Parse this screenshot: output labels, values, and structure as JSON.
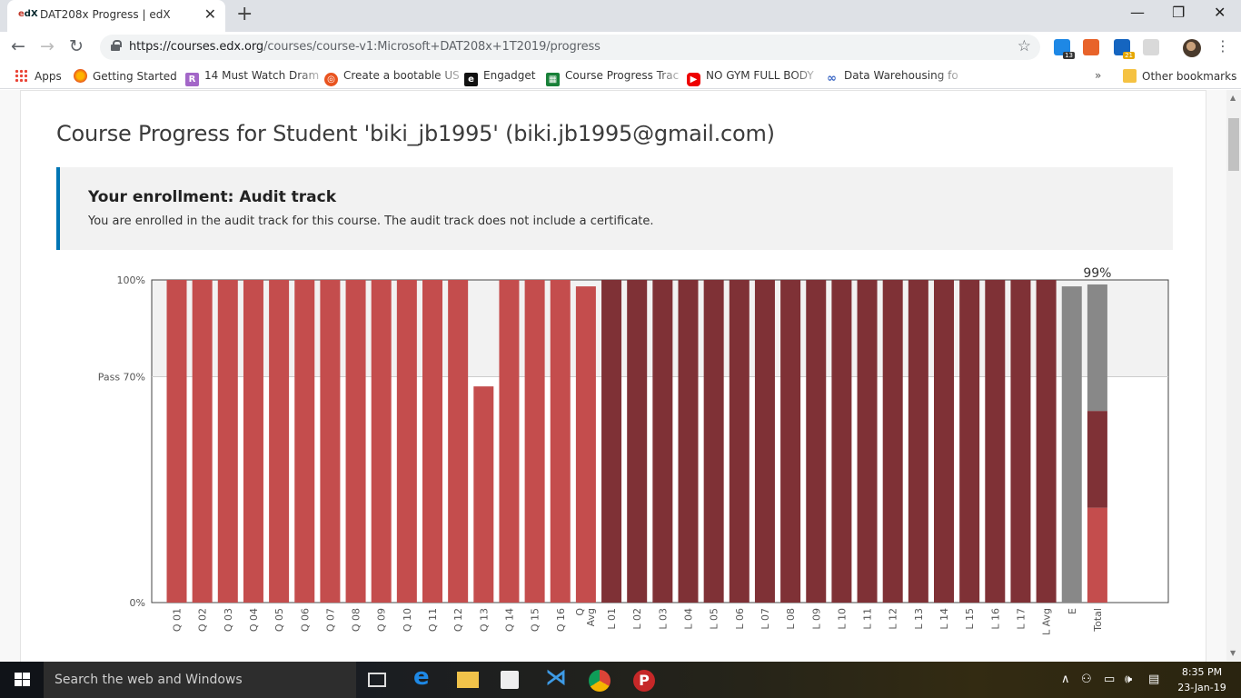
{
  "browser": {
    "tab_title": "DAT208x Progress | edX",
    "favicon_text": "edX",
    "url_host": "https://courses.edx.org",
    "url_path": "/courses/course-v1:Microsoft+DAT208x+1T2019/progress",
    "extension_badges": [
      "13",
      "21"
    ],
    "bookmarks": [
      {
        "label": "Apps",
        "icon": "apps-grid-icon"
      },
      {
        "label": "Getting Started",
        "icon": "firefox-icon"
      },
      {
        "label": "14 Must Watch Dram",
        "icon": "r-icon"
      },
      {
        "label": "Create a bootable US",
        "icon": "ubuntu-icon"
      },
      {
        "label": "Engadget",
        "icon": "engadget-icon"
      },
      {
        "label": "Course Progress Trac",
        "icon": "sheets-icon"
      },
      {
        "label": "NO GYM FULL BODY",
        "icon": "youtube-icon"
      },
      {
        "label": "Data Warehousing fo",
        "icon": "infinity-icon"
      }
    ],
    "overflow": "»",
    "other_bookmarks": "Other bookmarks"
  },
  "page": {
    "heading": "Course Progress for Student 'biki_jb1995' (biki.jb1995@gmail.com)",
    "notice_title": "Your enrollment: Audit track",
    "notice_text": "You are enrolled in the audit track for this course. The audit track does not include a certificate."
  },
  "chart_data": {
    "type": "bar",
    "categories": [
      "Q 01",
      "Q 02",
      "Q 03",
      "Q 04",
      "Q 05",
      "Q 06",
      "Q 07",
      "Q 08",
      "Q 09",
      "Q 10",
      "Q 11",
      "Q 12",
      "Q 13",
      "Q 14",
      "Q 15",
      "Q 16",
      "Q Avg",
      "L 01",
      "L 02",
      "L 03",
      "L 04",
      "L 05",
      "L 06",
      "L 07",
      "L 08",
      "L 09",
      "L 10",
      "L 11",
      "L 12",
      "L 13",
      "L 14",
      "L 15",
      "L 16",
      "L 17",
      "L Avg",
      "E",
      "Total"
    ],
    "values": [
      100,
      100,
      100,
      100,
      100,
      100,
      100,
      100,
      100,
      100,
      100,
      100,
      67,
      100,
      100,
      100,
      98,
      100,
      100,
      100,
      100,
      100,
      100,
      100,
      100,
      100,
      100,
      100,
      100,
      100,
      100,
      100,
      100,
      100,
      100,
      98,
      99
    ],
    "total_breakdown": [
      {
        "name": "quiz",
        "value": 29.4
      },
      {
        "name": "lab",
        "value": 30
      },
      {
        "name": "exam",
        "value": 39.2
      }
    ],
    "y_ticks": [
      {
        "value": 0,
        "label": "0%"
      },
      {
        "value": 70,
        "label": "Pass 70%"
      },
      {
        "value": 100,
        "label": "100%"
      }
    ],
    "total_label": "99%",
    "ylim": [
      0,
      100
    ],
    "colors": {
      "quiz": "#c44d4d",
      "lab": "#7f3136",
      "exam": "#888888",
      "pass_band": "#f2f2f2"
    }
  },
  "taskbar": {
    "search_placeholder": "Search the web and Windows",
    "time": "8:35 PM",
    "date": "23-Jan-19"
  }
}
